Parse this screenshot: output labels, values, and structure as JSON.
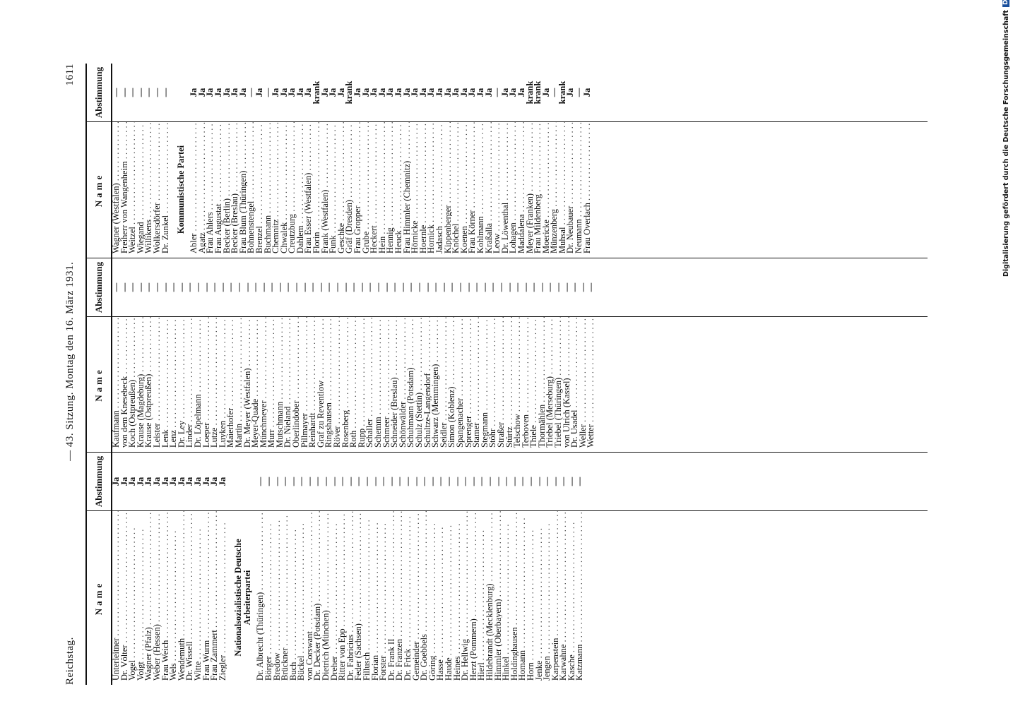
{
  "header": {
    "left": "Reichstag.",
    "center": "— 43. Sitzung. Montag den 16. März 1931.",
    "page_number": "1611"
  },
  "table_header": {
    "name": "Name",
    "vote": "Abstimmung"
  },
  "columns": [
    {
      "rows": [
        {
          "name": "Unterleitner",
          "vote": "Ja"
        },
        {
          "name": "Dr. Völter",
          "vote": "Ja"
        },
        {
          "name": "Vogel",
          "vote": "Ja"
        },
        {
          "name": "Voigt",
          "vote": "Ja"
        },
        {
          "name": "Wagner (Pfalz)",
          "vote": "Ja"
        },
        {
          "name": "Weber (Hessen)",
          "vote": "Ja"
        },
        {
          "name": "Frau Weich",
          "vote": "Ja"
        },
        {
          "name": "Wels",
          "vote": "Ja"
        },
        {
          "name": "Wendemuth",
          "vote": "Ja"
        },
        {
          "name": "Dr. Wissell",
          "vote": "Ja"
        },
        {
          "name": "Witte",
          "vote": "Ja"
        },
        {
          "name": "Frau Wurm",
          "vote": "Ja"
        },
        {
          "name": "Frau Zammert",
          "vote": "Ja"
        },
        {
          "name": "Ziegler",
          "vote": "Ja"
        },
        {
          "heading": "Nationalsozialistische Deutsche Arbeiterpartei"
        },
        {
          "name": "Dr. Albrecht (Thüringen)",
          "vote": "—"
        },
        {
          "name": "Börger",
          "vote": "—"
        },
        {
          "name": "Bredow",
          "vote": "—"
        },
        {
          "name": "Brückner",
          "vote": "—"
        },
        {
          "name": "Buch",
          "vote": "—"
        },
        {
          "name": "Bückel",
          "vote": "—"
        },
        {
          "name": "von Corswant",
          "vote": "—"
        },
        {
          "name": "Dr. Decker (Potsdam)",
          "vote": "—"
        },
        {
          "name": "Dietrich (München)",
          "vote": "—"
        },
        {
          "name": "Dreher",
          "vote": "—"
        },
        {
          "name": "Ritter von Epp",
          "vote": "—"
        },
        {
          "name": "Dr. Fabricius",
          "vote": "—"
        },
        {
          "name": "Feder (Sachsen)",
          "vote": "—"
        },
        {
          "name": "Fillusch",
          "vote": "—"
        },
        {
          "name": "Florian",
          "vote": "—"
        },
        {
          "name": "Forster",
          "vote": "—"
        },
        {
          "name": "Dr. Frank II",
          "vote": "—"
        },
        {
          "name": "Dr. Franzen",
          "vote": "—"
        },
        {
          "name": "Dr. Frick",
          "vote": "—"
        },
        {
          "name": "Gemeinder",
          "vote": "—"
        },
        {
          "name": "Dr. Goebbels",
          "vote": "—"
        },
        {
          "name": "Göring",
          "vote": "—"
        },
        {
          "name": "Hasse",
          "vote": "—"
        },
        {
          "name": "Haude",
          "vote": "—"
        },
        {
          "name": "Heines",
          "vote": "—"
        },
        {
          "name": "Dr. Hellwig",
          "vote": "—"
        },
        {
          "name": "Herzt (Pommern)",
          "vote": "—"
        },
        {
          "name": "Hierl",
          "vote": "—"
        },
        {
          "name": "Hildebrandt (Mecklenburg)",
          "vote": "—"
        },
        {
          "name": "Himmler (Oberbayern)",
          "vote": "—"
        },
        {
          "name": "Hinkel",
          "vote": "—"
        },
        {
          "name": "Holdinghausen",
          "vote": "—"
        },
        {
          "name": "Homann",
          "vote": "—"
        },
        {
          "name": "Horn",
          "vote": "—"
        },
        {
          "name": "Jenke",
          "vote": "—"
        },
        {
          "name": "Jengen",
          "vote": "—"
        },
        {
          "name": "Karpenstein",
          "vote": "—"
        },
        {
          "name": "Karwahne",
          "vote": "—"
        },
        {
          "name": "Kasche",
          "vote": "—"
        },
        {
          "name": "Katzmann",
          "vote": "—"
        }
      ]
    },
    {
      "rows": [
        {
          "name": "Kaufmann",
          "vote": "—"
        },
        {
          "name": "von dem Knesebeck",
          "vote": "—"
        },
        {
          "name": "Koch (Ostpreußen)",
          "vote": "—"
        },
        {
          "name": "Krause (Magdeburg)",
          "vote": "—"
        },
        {
          "name": "Krause (Ostpreußen)",
          "vote": "—"
        },
        {
          "name": "Leister",
          "vote": "—"
        },
        {
          "name": "Lenk",
          "vote": "—"
        },
        {
          "name": "Lenz",
          "vote": "—"
        },
        {
          "name": "Dr. Ley",
          "vote": "—"
        },
        {
          "name": "Linder",
          "vote": "—"
        },
        {
          "name": "Dr. Löpelmann",
          "vote": "—"
        },
        {
          "name": "Loeper",
          "vote": "—"
        },
        {
          "name": "Lutze",
          "vote": "—"
        },
        {
          "name": "Luyken",
          "vote": "—"
        },
        {
          "name": "Maierhofer",
          "vote": "—"
        },
        {
          "name": "Martin",
          "vote": "—"
        },
        {
          "name": "Dr. Meyer (Westfalen)",
          "vote": "—"
        },
        {
          "name": "Meyer-Quade",
          "vote": "—"
        },
        {
          "name": "Münchmeyer",
          "vote": "—"
        },
        {
          "name": "Murr",
          "vote": "—"
        },
        {
          "name": "Mutschmann",
          "vote": "—"
        },
        {
          "name": "Dr. Nieland",
          "vote": "—"
        },
        {
          "name": "Oberlindober",
          "vote": "—"
        },
        {
          "name": "Pillmayer",
          "vote": "—"
        },
        {
          "name": "Reinhardt",
          "vote": "—"
        },
        {
          "name": "Graf zu Reventlow",
          "vote": "—"
        },
        {
          "name": "Ringshausen",
          "vote": "—"
        },
        {
          "name": "Röver",
          "vote": "—"
        },
        {
          "name": "Rosenberg",
          "vote": "—"
        },
        {
          "name": "Roth",
          "vote": "—"
        },
        {
          "name": "Rupp",
          "vote": "—"
        },
        {
          "name": "Schaller",
          "vote": "—"
        },
        {
          "name": "Schemm",
          "vote": "—"
        },
        {
          "name": "Schmeer",
          "vote": "—"
        },
        {
          "name": "Schneider (Breslau)",
          "vote": "—"
        },
        {
          "name": "Schönwälder",
          "vote": "—"
        },
        {
          "name": "Schuhmann (Potsdam)",
          "vote": "—"
        },
        {
          "name": "Schulz (Stettin)",
          "vote": "—"
        },
        {
          "name": "Schultze-Langendorf",
          "vote": "—"
        },
        {
          "name": "Schwarz (Memmingen)",
          "vote": "—"
        },
        {
          "name": "Seidler",
          "vote": "—"
        },
        {
          "name": "Simon (Koblenz)",
          "vote": "—"
        },
        {
          "name": "Spangenacher",
          "vote": "—"
        },
        {
          "name": "Sprenger",
          "vote": "—"
        },
        {
          "name": "Stamer",
          "vote": "—"
        },
        {
          "name": "Stegmann",
          "vote": "—"
        },
        {
          "name": "Stöhr",
          "vote": "—"
        },
        {
          "name": "Straßer",
          "vote": "—"
        },
        {
          "name": "Stürtz",
          "vote": "—"
        },
        {
          "name": "Telschow",
          "vote": "—"
        },
        {
          "name": "Terboven",
          "vote": "—"
        },
        {
          "name": "Thiele",
          "vote": "—"
        },
        {
          "name": "Thormählen",
          "vote": "—"
        },
        {
          "name": "Triebel (Merseburg)",
          "vote": "—"
        },
        {
          "name": "Triebel (Thüringen)",
          "vote": "—"
        },
        {
          "name": "von Ulrich (Kassel)",
          "vote": "—"
        },
        {
          "name": "Dr. Usadel",
          "vote": "—"
        },
        {
          "name": "Weller",
          "vote": "—"
        },
        {
          "name": "Wetter",
          "vote": "—"
        }
      ]
    },
    {
      "rows": [
        {
          "name": "Wagner (Westfalen)",
          "vote": "—"
        },
        {
          "name": "Freiherr von Wangenheim",
          "vote": "—"
        },
        {
          "name": "Weitzel",
          "vote": "—"
        },
        {
          "name": "Wiegand",
          "vote": "—"
        },
        {
          "name": "Willikens",
          "vote": "—"
        },
        {
          "name": "Wolkersdörfer",
          "vote": "—"
        },
        {
          "name": "Dr. Zunkel",
          "vote": "—"
        },
        {
          "heading": "Kommunistische Partei"
        },
        {
          "name": "Abler",
          "vote": "Ja"
        },
        {
          "name": "Agatz",
          "vote": "Ja"
        },
        {
          "name": "Frau Ahlers",
          "vote": "Ja"
        },
        {
          "name": "Frau Augustat",
          "vote": "Ja"
        },
        {
          "name": "Becker (Berlin)",
          "vote": "Ja"
        },
        {
          "name": "Becker (Breslau)",
          "vote": "Ja"
        },
        {
          "name": "Frau Blum (Thüringen)",
          "vote": "Ja"
        },
        {
          "name": "Bohnenstengel",
          "vote": "—"
        },
        {
          "name": "Brenzel",
          "vote": "Ja"
        },
        {
          "name": "Buchmann",
          "vote": "—"
        },
        {
          "name": "Chemnitz",
          "vote": "Ja"
        },
        {
          "name": "Chwalek",
          "vote": "Ja"
        },
        {
          "name": "Creutzburg",
          "vote": "Ja"
        },
        {
          "name": "Dahlem",
          "vote": "Ja"
        },
        {
          "name": "Frau Esser (Westfalen)",
          "vote": "Ja"
        },
        {
          "name": "Florin",
          "vote": "krank"
        },
        {
          "name": "Frank (Westfalen)",
          "vote": "Ja"
        },
        {
          "name": "Funk",
          "vote": "Ja"
        },
        {
          "name": "Geschke",
          "vote": "Ja"
        },
        {
          "name": "Gräf (Dresden)",
          "vote": "krank"
        },
        {
          "name": "Frau Gropper",
          "vote": "Ja"
        },
        {
          "name": "Grube",
          "vote": "Ja"
        },
        {
          "name": "Heckert",
          "vote": "Ja"
        },
        {
          "name": "Hein",
          "vote": "Ja"
        },
        {
          "name": "Hennig",
          "vote": "Ja"
        },
        {
          "name": "Heuck",
          "vote": "Ja"
        },
        {
          "name": "Frau Himmler (Chemnitz)",
          "vote": "Ja"
        },
        {
          "name": "Hörnicke",
          "vote": "Ja"
        },
        {
          "name": "Hoernle",
          "vote": "Ja"
        },
        {
          "name": "Hornick",
          "vote": "Ja"
        },
        {
          "name": "Jadasch",
          "vote": "Ja"
        },
        {
          "name": "Kippenberger",
          "vote": "Ja"
        },
        {
          "name": "Knöchel",
          "vote": "Ja"
        },
        {
          "name": "Koenen",
          "vote": "Ja"
        },
        {
          "name": "Frau Körner",
          "vote": "Ja"
        },
        {
          "name": "Kohlmann",
          "vote": "Ja"
        },
        {
          "name": "Kraßalla",
          "vote": "Ja"
        },
        {
          "name": "Leow",
          "vote": "—"
        },
        {
          "name": "Dr. Löwenthal",
          "vote": "Ja"
        },
        {
          "name": "Lohagen",
          "vote": "Ja"
        },
        {
          "name": "Maddalena",
          "vote": "Ja"
        },
        {
          "name": "Meyer (Franken)",
          "vote": "krank"
        },
        {
          "name": "Frau Mildenberg",
          "vote": "krank"
        },
        {
          "name": "Moericke",
          "vote": "Ja"
        },
        {
          "name": "Münzenberg",
          "vote": "—"
        },
        {
          "name": "Muhsal",
          "vote": "krank"
        },
        {
          "name": "Dr. Neubauer",
          "vote": "Ja"
        },
        {
          "name": "Neumann",
          "vote": "—"
        },
        {
          "name": "Frau Overlach",
          "vote": "Ja"
        }
      ]
    }
  ],
  "footer_credit": "Digitalisierung gefördert durch die Deutsche Forschungsgemeinschaft",
  "footer_logo": "DFG"
}
